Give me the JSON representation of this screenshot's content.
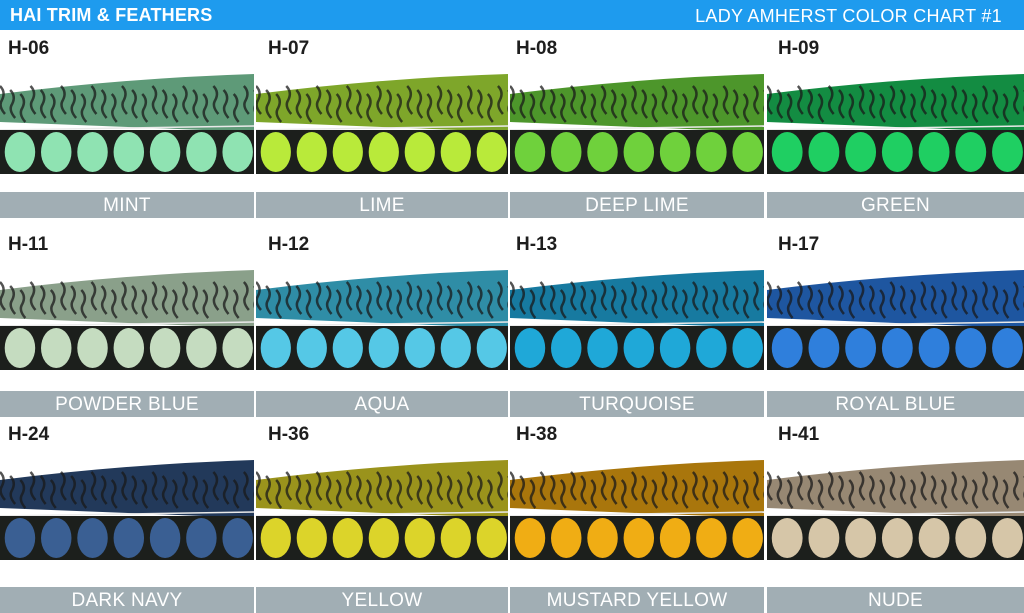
{
  "header": {
    "brand": "HAI TRIM & FEATHERS",
    "chart_title": "LADY AMHERST COLOR CHART #1"
  },
  "swatches": [
    {
      "code": "H-06",
      "name": "MINT",
      "color": "#8fe3b2",
      "dark": "#5e9a78"
    },
    {
      "code": "H-07",
      "name": "LIME",
      "color": "#b9ea3a",
      "dark": "#7ea62a"
    },
    {
      "code": "H-08",
      "name": "DEEP LIME",
      "color": "#6fd13c",
      "dark": "#4d962b"
    },
    {
      "code": "H-09",
      "name": "GREEN",
      "color": "#1fcf62",
      "dark": "#138c42"
    },
    {
      "code": "H-11",
      "name": "POWDER BLUE",
      "color": "#c5dcc0",
      "dark": "#8aa08a"
    },
    {
      "code": "H-12",
      "name": "AQUA",
      "color": "#55c8e6",
      "dark": "#2f8da6"
    },
    {
      "code": "H-13",
      "name": "TURQUOISE",
      "color": "#1fa8d8",
      "dark": "#177aa0"
    },
    {
      "code": "H-17",
      "name": "ROYAL BLUE",
      "color": "#2f7fdc",
      "dark": "#1e56a0"
    },
    {
      "code": "H-24",
      "name": "DARK NAVY",
      "color": "#3a5f93",
      "dark": "#22395a"
    },
    {
      "code": "H-36",
      "name": "YELLOW",
      "color": "#dcd42a",
      "dark": "#9a931c"
    },
    {
      "code": "H-38",
      "name": "MUSTARD YELLOW",
      "color": "#f0ad14",
      "dark": "#a9760c"
    },
    {
      "code": "H-41",
      "name": "NUDE",
      "color": "#d6c6a8",
      "dark": "#978873"
    }
  ]
}
